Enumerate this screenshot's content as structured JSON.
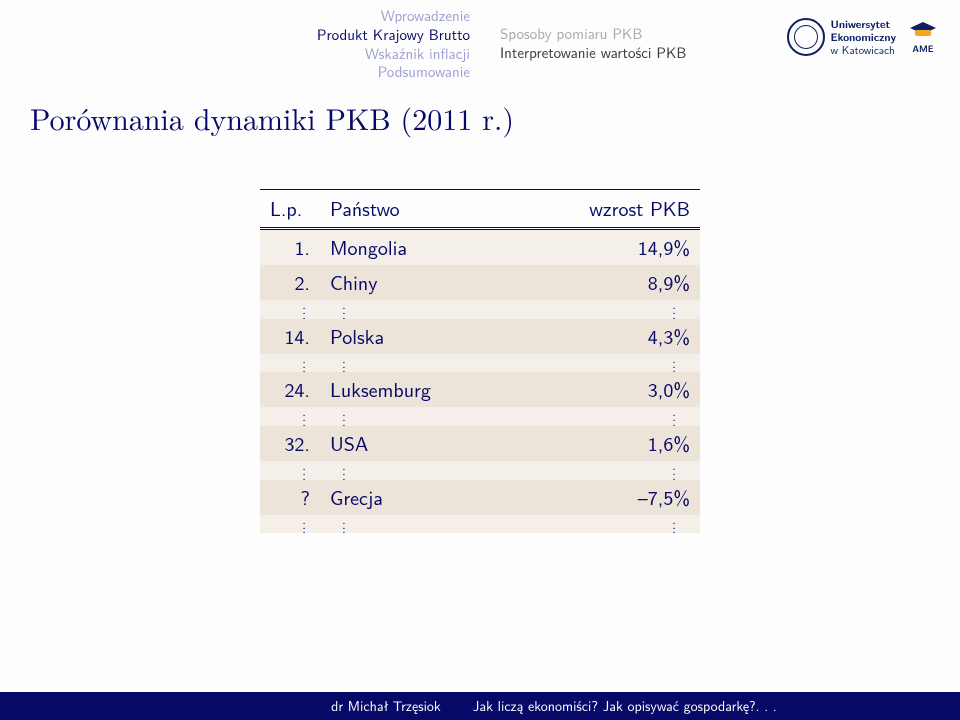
{
  "nav": {
    "left": [
      "Wprowadzenie",
      "Produkt Krajowy Brutto",
      "Wskaźnik inflacji",
      "Podsumowanie"
    ],
    "right": [
      "Sposoby pomiaru PKB",
      "Interpretowanie wartości PKB"
    ]
  },
  "logos": {
    "ue_line1": "Uniwersytet",
    "ue_line2": "Ekonomiczny",
    "ue_line3": "w Katowicach",
    "ame": "AME"
  },
  "title": "Porównania dynamiki PKB (2011 r.)",
  "table": {
    "headers": {
      "lp": "L.p.",
      "country": "Państwo",
      "growth": "wzrost PKB"
    },
    "rows": [
      {
        "type": "data",
        "lp": "1.",
        "country": "Mongolia",
        "value": "14,9%"
      },
      {
        "type": "data",
        "lp": "2.",
        "country": "Chiny",
        "value": "8,9%"
      },
      {
        "type": "dots"
      },
      {
        "type": "data",
        "lp": "14.",
        "country": "Polska",
        "value": "4,3%"
      },
      {
        "type": "dots"
      },
      {
        "type": "data",
        "lp": "24.",
        "country": "Luksemburg",
        "value": "3,0%"
      },
      {
        "type": "dots"
      },
      {
        "type": "data",
        "lp": "32.",
        "country": "USA",
        "value": "1,6%"
      },
      {
        "type": "dots"
      },
      {
        "type": "data",
        "lp": "?",
        "country": "Grecja",
        "value": "–7,5%"
      },
      {
        "type": "dots"
      }
    ],
    "colors": {
      "row_bg_a": "#f4efe9",
      "row_bg_b": "#ece3d9",
      "text": "#070968",
      "border": "#070968"
    }
  },
  "footer": {
    "author": "dr Michał Trzęsiok",
    "talk": "Jak liczą ekonomiści? Jak opisywać gospodarkę?. . ."
  }
}
